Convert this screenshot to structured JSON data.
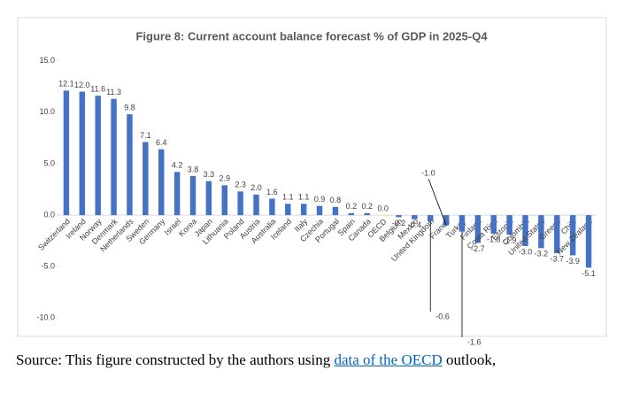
{
  "chart_data": {
    "type": "bar",
    "title": "Figure 8: Current account balance forecast % of GDP in 2025-Q4",
    "categories": [
      "Switzerland",
      "Ireland",
      "Norway",
      "Denmark",
      "Netherlands",
      "Sweden",
      "Germany",
      "Israel",
      "Korea",
      "Japan",
      "Lithuania",
      "Poland",
      "Austria",
      "Australia",
      "Iceland",
      "Italy",
      "Czechia",
      "Portugal",
      "Spain",
      "Canada",
      "OECD",
      "Belgium",
      "Mexico",
      "United Kingdom",
      "France",
      "Turkey",
      "Finland",
      "Costa Rica",
      "Estonia",
      "Colombia",
      "United States",
      "Greece",
      "Chile",
      "New Zealand"
    ],
    "values": [
      12.1,
      12.0,
      11.6,
      11.3,
      9.8,
      7.1,
      6.4,
      4.2,
      3.8,
      3.3,
      2.9,
      2.3,
      2.0,
      1.6,
      1.1,
      1.1,
      0.9,
      0.8,
      0.2,
      0.2,
      0.0,
      -0.2,
      -0.4,
      -0.6,
      -1.0,
      -1.6,
      -2.7,
      -1.8,
      -1.9,
      -3.0,
      -3.2,
      -3.7,
      -3.9,
      -5.1
    ],
    "value_labels": [
      "12.1",
      "12.0",
      "11.6",
      "11.3",
      "9.8",
      "7.1",
      "6.4",
      "4.2",
      "3.8",
      "3.3",
      "2.9",
      "2.3",
      "2.0",
      "1.6",
      "1.1",
      "1.1",
      "0.9",
      "0.8",
      "0.2",
      "0.2",
      "0.0",
      "-0.2",
      "-0.4",
      "-0.6",
      "-1.0",
      "-1.6",
      "-2.7",
      "-1.8",
      "-1.9",
      "-3.0",
      "-3.2",
      "-3.7",
      "-3.9",
      "-5.1"
    ],
    "color": "#4472c4",
    "ylim": [
      -11,
      16
    ],
    "yticks": [
      {
        "value": -10,
        "label": "-10.0"
      },
      {
        "value": -5,
        "label": "-5.0"
      },
      {
        "value": 0,
        "label": "0.0"
      },
      {
        "value": 5,
        "label": "5.0"
      },
      {
        "value": 10,
        "label": "10.0"
      },
      {
        "value": 15,
        "label": "15.0"
      }
    ],
    "grid": false
  },
  "source": {
    "prefix": "Source: This figure constructed by the authors using ",
    "link": "data of the OECD",
    "suffix": " outlook,"
  }
}
